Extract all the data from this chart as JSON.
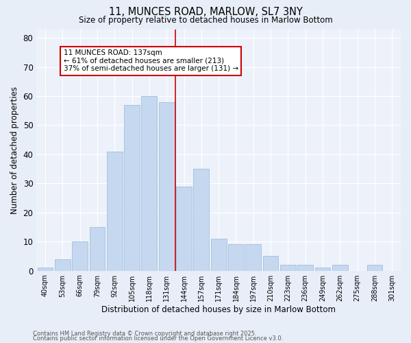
{
  "title": "11, MUNCES ROAD, MARLOW, SL7 3NY",
  "subtitle": "Size of property relative to detached houses in Marlow Bottom",
  "xlabel": "Distribution of detached houses by size in Marlow Bottom",
  "ylabel": "Number of detached properties",
  "footnote1": "Contains HM Land Registry data © Crown copyright and database right 2025.",
  "footnote2": "Contains public sector information licensed under the Open Government Licence v3.0.",
  "categories": [
    "40sqm",
    "53sqm",
    "66sqm",
    "79sqm",
    "92sqm",
    "105sqm",
    "118sqm",
    "131sqm",
    "144sqm",
    "157sqm",
    "171sqm",
    "184sqm",
    "197sqm",
    "210sqm",
    "223sqm",
    "236sqm",
    "249sqm",
    "262sqm",
    "275sqm",
    "288sqm",
    "301sqm"
  ],
  "values": [
    1,
    4,
    10,
    15,
    41,
    57,
    60,
    58,
    29,
    35,
    11,
    9,
    9,
    5,
    2,
    2,
    1,
    2,
    0,
    2,
    0
  ],
  "bar_color": "#c5d8ef",
  "bar_edge_color": "#a0bede",
  "vline_x": 7.5,
  "vline_color": "#cc0000",
  "annotation_title": "11 MUNCES ROAD: 137sqm",
  "annotation_line2": "← 61% of detached houses are smaller (213)",
  "annotation_line3": "37% of semi-detached houses are larger (131) →",
  "ylim": [
    0,
    83
  ],
  "yticks": [
    0,
    10,
    20,
    30,
    40,
    50,
    60,
    70,
    80
  ],
  "bg_color": "#e8eef8",
  "plot_bg_color": "#edf2fa"
}
